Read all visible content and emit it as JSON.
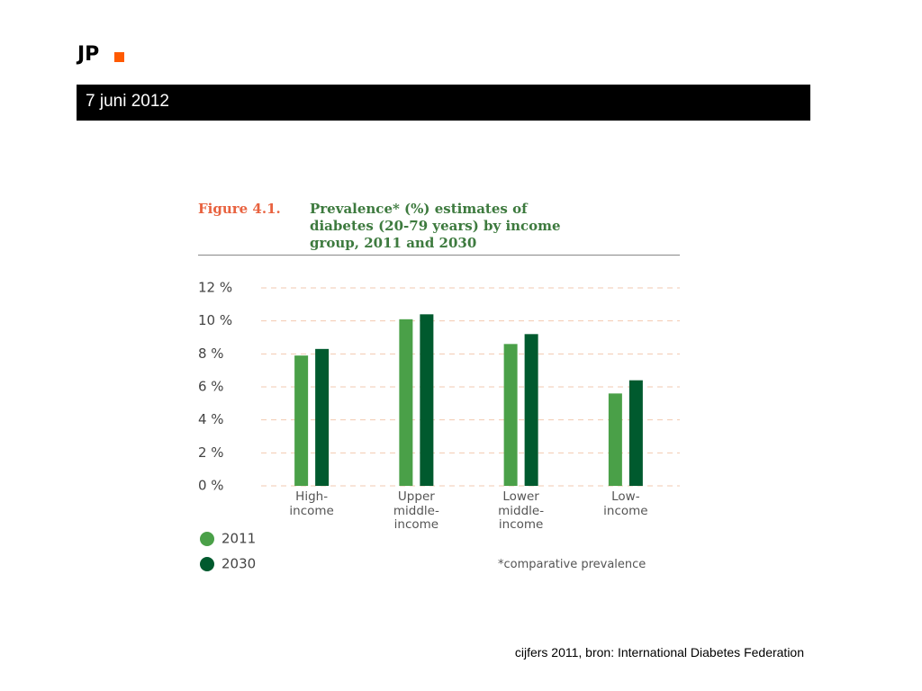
{
  "header": {
    "logo": "JP",
    "date": "7 juni 2012"
  },
  "chart_data": {
    "type": "bar",
    "figure_label": "Figure 4.1.",
    "title": "Prevalence* (%) estimates of\ndiabetes (20-79 years) by income\ngroup, 2011 and 2030",
    "categories": [
      "High-\nincome",
      "Upper\nmiddle-\nincome",
      "Lower\nmiddle-\nincome",
      "Low-\nincome"
    ],
    "series": [
      {
        "name": "2011",
        "color": "#4aa048",
        "values": [
          7.9,
          10.1,
          8.6,
          5.6
        ]
      },
      {
        "name": "2030",
        "color": "#005a2e",
        "values": [
          8.3,
          10.4,
          9.2,
          6.4
        ]
      }
    ],
    "ylim": [
      0,
      12
    ],
    "yticks": [
      {
        "value": 0,
        "label": "0 %"
      },
      {
        "value": 2,
        "label": "2 %"
      },
      {
        "value": 4,
        "label": "4 %"
      },
      {
        "value": 6,
        "label": "6 %"
      },
      {
        "value": 8,
        "label": "8 %"
      },
      {
        "value": 10,
        "label": "10 %"
      },
      {
        "value": 12,
        "label": "12 %"
      }
    ],
    "grid": true,
    "footnote": "*comparative prevalence"
  },
  "source": "cijfers 2011, bron: International Diabetes Federation"
}
